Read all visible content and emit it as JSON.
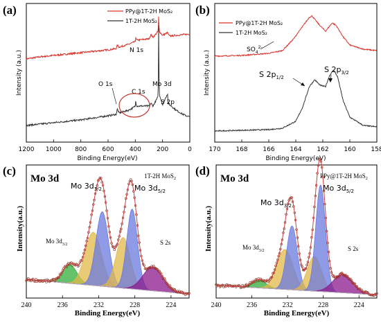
{
  "chart_data": [
    {
      "panel_label": "(a)",
      "type": "line",
      "xlabel": "Binding Energy(eV)",
      "ylabel": "Intensity (a.u.)",
      "xlim": [
        1200,
        0
      ],
      "x_ticks": [
        "1200",
        "1000",
        "800",
        "600",
        "400",
        "200",
        "0"
      ],
      "series": [
        {
          "name": "PPy@1T-2H MoS₂",
          "color": "#d9342b",
          "points": [
            [
              1200,
              0.6
            ],
            [
              1100,
              0.615
            ],
            [
              1000,
              0.625
            ],
            [
              900,
              0.635
            ],
            [
              800,
              0.645
            ],
            [
              700,
              0.655
            ],
            [
              600,
              0.665
            ],
            [
              540,
              0.675
            ],
            [
              532,
              0.7
            ],
            [
              520,
              0.685
            ],
            [
              450,
              0.705
            ],
            [
              400,
              0.725
            ],
            [
              398,
              0.76
            ],
            [
              390,
              0.735
            ],
            [
              300,
              0.745
            ],
            [
              285,
              0.775
            ],
            [
              270,
              0.755
            ],
            [
              232,
              0.8
            ],
            [
              228,
              0.92
            ],
            [
              225,
              0.8
            ],
            [
              200,
              0.77
            ],
            [
              163,
              0.79
            ],
            [
              150,
              0.765
            ],
            [
              100,
              0.77
            ],
            [
              50,
              0.775
            ],
            [
              0,
              0.78
            ]
          ]
        },
        {
          "name": "1T-2H MoS₂",
          "color": "#333333",
          "points": [
            [
              1200,
              0.12
            ],
            [
              1100,
              0.13
            ],
            [
              1000,
              0.14
            ],
            [
              900,
              0.15
            ],
            [
              800,
              0.16
            ],
            [
              700,
              0.175
            ],
            [
              600,
              0.19
            ],
            [
              540,
              0.2
            ],
            [
              532,
              0.24
            ],
            [
              520,
              0.21
            ],
            [
              450,
              0.23
            ],
            [
              420,
              0.245
            ],
            [
              400,
              0.26
            ],
            [
              398,
              0.3
            ],
            [
              390,
              0.26
            ],
            [
              300,
              0.26
            ],
            [
              285,
              0.28
            ],
            [
              270,
              0.26
            ],
            [
              232,
              0.33
            ],
            [
              228,
              0.92
            ],
            [
              225,
              0.35
            ],
            [
              200,
              0.27
            ],
            [
              163,
              0.35
            ],
            [
              160,
              0.28
            ],
            [
              100,
              0.23
            ],
            [
              50,
              0.2
            ],
            [
              0,
              0.18
            ]
          ]
        }
      ],
      "annotations": [
        "N 1s",
        "O 1s",
        "C 1s",
        "Mo 3d",
        "S 2p"
      ]
    },
    {
      "panel_label": "(b)",
      "type": "line",
      "xlabel": "Binding Energy(eV)",
      "ylabel": "Intensity (a.u.)",
      "xlim": [
        170,
        158
      ],
      "x_ticks": [
        "170",
        "168",
        "166",
        "164",
        "162",
        "160",
        "158"
      ],
      "series": [
        {
          "name": "PPy@1T-2H MoS₂",
          "color": "#d9342b",
          "points": [
            [
              170,
              0.62
            ],
            [
              168,
              0.625
            ],
            [
              166,
              0.64
            ],
            [
              165,
              0.66
            ],
            [
              164.2,
              0.74
            ],
            [
              163.6,
              0.82
            ],
            [
              163.0,
              0.9
            ],
            [
              162.8,
              0.91
            ],
            [
              162.3,
              0.85
            ],
            [
              161.8,
              0.8
            ],
            [
              161.3,
              0.86
            ],
            [
              161.0,
              0.84
            ],
            [
              160.5,
              0.76
            ],
            [
              160,
              0.7
            ],
            [
              159,
              0.67
            ],
            [
              158,
              0.66
            ]
          ]
        },
        {
          "name": "1T-2H MoS₂",
          "color": "#333333",
          "points": [
            [
              170,
              0.08
            ],
            [
              168,
              0.085
            ],
            [
              166,
              0.09
            ],
            [
              165,
              0.1
            ],
            [
              164,
              0.15
            ],
            [
              163.5,
              0.25
            ],
            [
              163,
              0.4
            ],
            [
              162.6,
              0.45
            ],
            [
              162.2,
              0.41
            ],
            [
              161.8,
              0.4
            ],
            [
              161.5,
              0.48
            ],
            [
              161.2,
              0.52
            ],
            [
              160.9,
              0.47
            ],
            [
              160.5,
              0.3
            ],
            [
              160,
              0.18
            ],
            [
              159,
              0.12
            ],
            [
              158,
              0.11
            ]
          ]
        }
      ],
      "annotations": [
        "SO₄²⁻",
        "S 2p1/2",
        "S 2p3/2"
      ]
    },
    {
      "panel_label": "(c)",
      "type": "area",
      "title": "Mo 3d",
      "sample": "1T-2H MoS₂",
      "xlabel": "Binding Energy(eV)",
      "ylabel": "Intensity(a.u.)",
      "xlim": [
        240,
        222
      ],
      "x_ticks": [
        "240",
        "236",
        "232",
        "228",
        "224"
      ],
      "components": [
        {
          "label": "Mo 3d3/2",
          "center": 235.2,
          "amp": 0.14,
          "width": 0.8,
          "color": "#2fae3a"
        },
        {
          "label": "",
          "center": 232.6,
          "amp": 0.4,
          "width": 0.9,
          "color": "#e0b84a"
        },
        {
          "label": "",
          "center": 231.6,
          "amp": 0.56,
          "width": 0.7,
          "color": "#6b79e0"
        },
        {
          "label": "",
          "center": 229.3,
          "amp": 0.38,
          "width": 0.8,
          "color": "#e0b84a"
        },
        {
          "label": "",
          "center": 228.3,
          "amp": 0.6,
          "width": 0.6,
          "color": "#6b79e0"
        },
        {
          "label": "S 2s",
          "center": 226.0,
          "amp": 0.18,
          "width": 1.1,
          "color": "#8b1a8c"
        }
      ],
      "labels": [
        "Mo 3d3/2",
        "Mo 3d5/2",
        "Mo 3d3/2",
        "S 2s"
      ]
    },
    {
      "panel_label": "(d)",
      "type": "area",
      "title": "Mo 3d",
      "sample": "PPy@1T-2H MoS₂",
      "xlabel": "Binding Energy(eV)",
      "ylabel": "Intensity(a.u.)",
      "xlim": [
        240,
        222
      ],
      "x_ticks": [
        "240",
        "236",
        "232",
        "228",
        "224"
      ],
      "components": [
        {
          "label": "Mo 3d3/2",
          "center": 235.2,
          "amp": 0.06,
          "width": 0.8,
          "color": "#2fae3a"
        },
        {
          "label": "",
          "center": 232.3,
          "amp": 0.3,
          "width": 0.9,
          "color": "#e0b84a"
        },
        {
          "label": "",
          "center": 231.5,
          "amp": 0.48,
          "width": 0.6,
          "color": "#6b79e0"
        },
        {
          "label": "",
          "center": 229.0,
          "amp": 0.26,
          "width": 0.8,
          "color": "#e0b84a"
        },
        {
          "label": "",
          "center": 228.3,
          "amp": 0.8,
          "width": 0.55,
          "color": "#6b79e0"
        },
        {
          "label": "S 2s",
          "center": 225.8,
          "amp": 0.14,
          "width": 1.1,
          "color": "#8b1a8c"
        }
      ],
      "labels": [
        "Mo 3d3/2",
        "Mo 3d5/2",
        "Mo 3d3/2",
        "S 2s"
      ]
    }
  ],
  "text": {
    "a_letter": "(a)",
    "b_letter": "(b)",
    "c_letter": "(c)",
    "d_letter": "(d)",
    "a_legend1": "PPy@1T-2H MoS₂",
    "a_legend2": "1T-2H MoS₂",
    "b_legend1": "PPy@1T-2H MoS₂",
    "b_legend2": "1T-2H MoS₂",
    "a_ylabel": "Intensity (a.u.)",
    "b_ylabel": "Intensity (a.u.)",
    "a_xlabel": "Binding Energy(eV)",
    "b_xlabel": "Binding Energy(eV)",
    "c_xlabel": "Binding Energy(eV)",
    "d_xlabel": "Binding Energy(eV)",
    "c_ylabel": "Intensity(a.u.)",
    "d_ylabel": "Intensity(a.u.)",
    "a_n1s": "N 1s",
    "a_o1s": "O 1s",
    "a_c1s": "C 1s",
    "a_mo3d": "Mo 3d",
    "a_s2p": "S 2p",
    "b_so4": "SO",
    "b_so4_sub": "4",
    "b_so4_sup": "2-",
    "b_s2p12": "S 2p",
    "b_s2p12_sub": "1/2",
    "b_s2p32": "S 2p",
    "b_s2p32_sub": "3/2",
    "c_title": "Mo 3d",
    "c_sample": "1T-2H MoS",
    "c_sample_sub": "2",
    "d_title": "Mo 3d",
    "d_sample": "PPy@1T-2H MoS",
    "d_sample_sub": "2",
    "mo3d32": "Mo 3d",
    "mo3d32_sub": "3/2",
    "mo3d52": "Mo 3d",
    "mo3d52_sub": "5/2",
    "s2s": "S 2s"
  },
  "colors": {
    "red_series": "#d9342b",
    "black_series": "#333333",
    "raw_data": "#8b2a1a",
    "envelope": "#c94040",
    "circle": "#c0392b"
  }
}
